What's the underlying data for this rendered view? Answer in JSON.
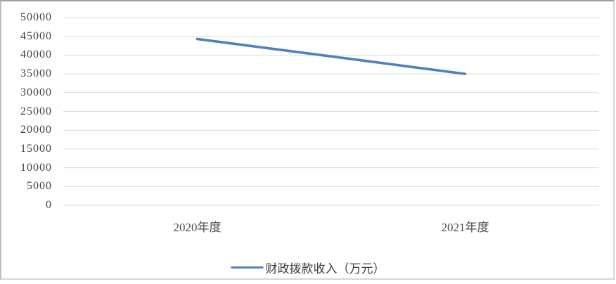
{
  "chart_data": {
    "type": "line",
    "title": "",
    "categories": [
      "2020年度",
      "2021年度"
    ],
    "series": [
      {
        "name": "财政拨款收入（万元）",
        "values": [
          44300,
          35000
        ],
        "color": "#4f81bd"
      }
    ],
    "yticks": [
      0,
      5000,
      10000,
      15000,
      20000,
      25000,
      30000,
      35000,
      40000,
      45000,
      50000
    ],
    "ylim": [
      0,
      50000
    ],
    "xlabel": "",
    "ylabel": "",
    "grid": true,
    "gridline_color": "#d9d9d9",
    "text_color": "#404040",
    "legend_position": "bottom"
  }
}
